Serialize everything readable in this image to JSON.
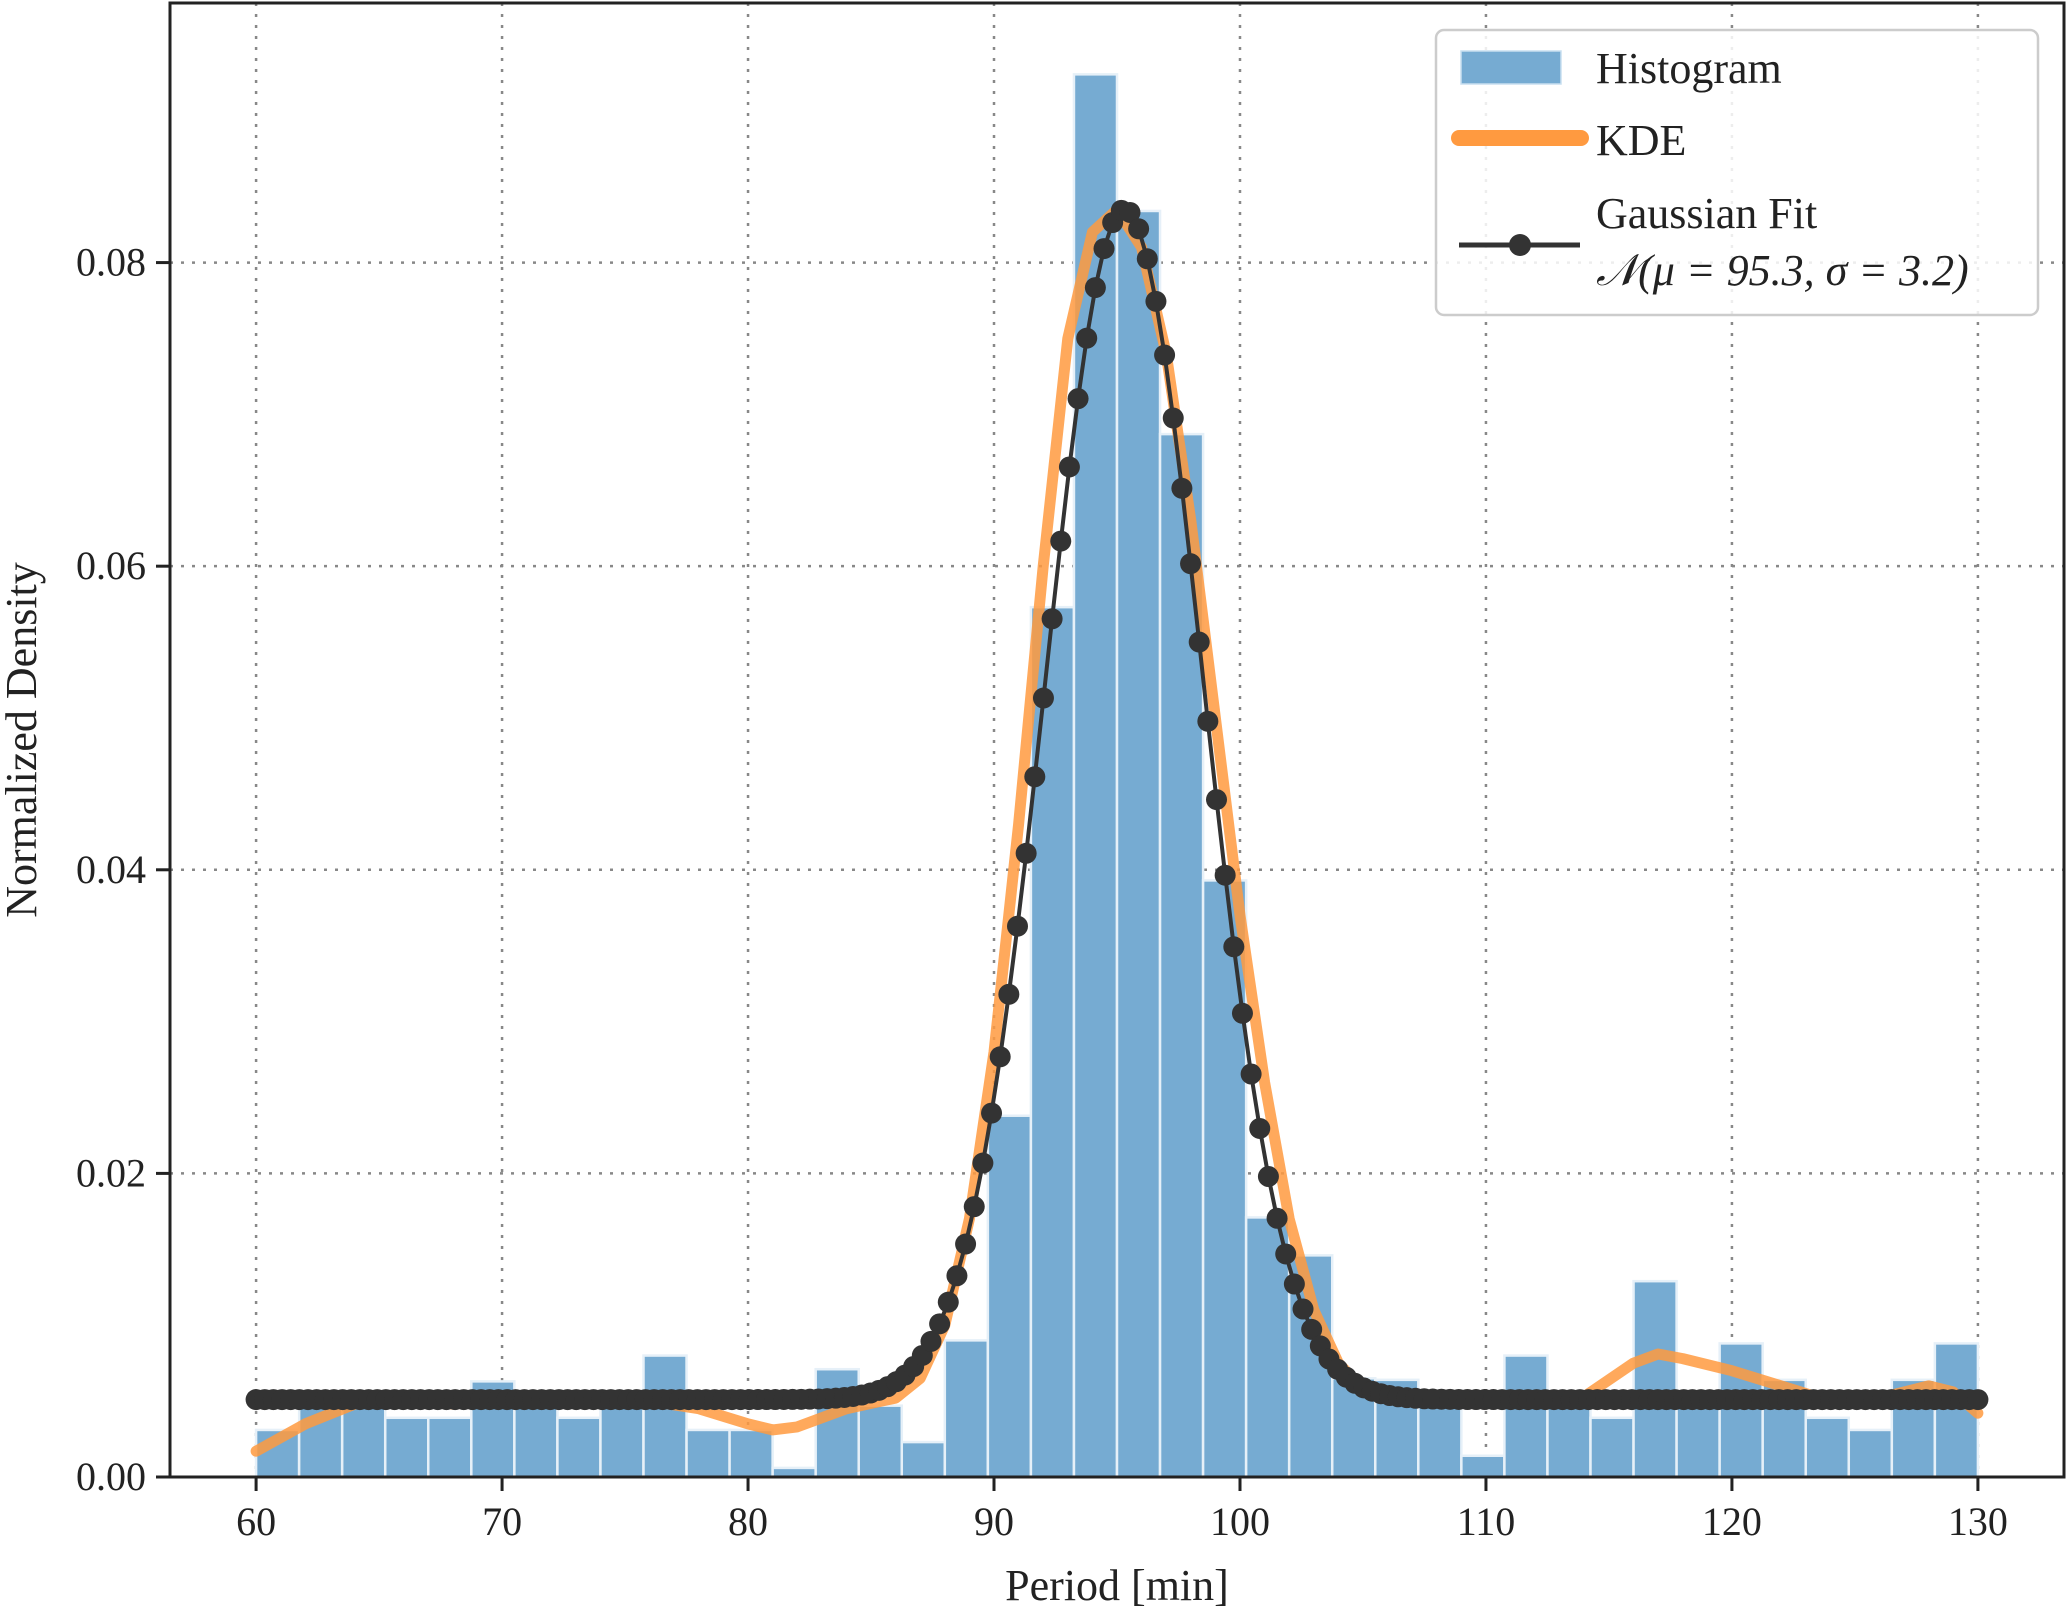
{
  "chart_data": {
    "type": "bar",
    "title": "",
    "xlabel": "Period [min]",
    "ylabel": "Normalized Density",
    "xlim": [
      56.5,
      133.5
    ],
    "ylim": [
      0,
      0.0971
    ],
    "grid": true,
    "legend_position": "top-right",
    "xticks": [
      60,
      70,
      80,
      90,
      100,
      110,
      120,
      130
    ],
    "xtick_labels": [
      "60",
      "70",
      "80",
      "90",
      "100",
      "110",
      "120",
      "130"
    ],
    "yticks": [
      0,
      0.02,
      0.04,
      0.06,
      0.08
    ],
    "ytick_labels": [
      "0.00",
      "0.02",
      "0.04",
      "0.06",
      "0.08"
    ],
    "histogram": {
      "name": "Histogram",
      "color": "#76abd2",
      "bin_start": 60,
      "bin_width": 1.75,
      "values": [
        0.0031,
        0.0047,
        0.0047,
        0.0039,
        0.0039,
        0.0063,
        0.0047,
        0.0039,
        0.0047,
        0.008,
        0.0031,
        0.0031,
        0.0006,
        0.0071,
        0.0047,
        0.0023,
        0.009,
        0.0238,
        0.0573,
        0.0924,
        0.0834,
        0.0687,
        0.0393,
        0.0171,
        0.0146,
        0.0065,
        0.0064,
        0.0055,
        0.0014,
        0.008,
        0.0055,
        0.0039,
        0.0129,
        0.0055,
        0.0088,
        0.0064,
        0.0039,
        0.0031,
        0.0064,
        0.0088
      ]
    },
    "kde": {
      "name": "KDE",
      "color": "#ff9a40",
      "x": [
        60,
        62,
        64,
        66,
        68,
        70,
        72,
        74,
        76,
        78,
        80,
        81,
        82,
        84,
        86,
        87,
        88,
        89,
        90,
        91,
        92,
        93,
        94,
        95,
        96,
        97,
        98,
        99,
        100,
        101,
        102,
        103,
        104,
        105,
        106,
        108,
        110,
        112,
        114,
        116,
        117,
        118,
        120,
        122,
        124,
        126,
        128,
        129,
        130
      ],
      "y": [
        0.0017,
        0.0035,
        0.0048,
        0.005,
        0.0048,
        0.0051,
        0.0051,
        0.0051,
        0.005,
        0.0045,
        0.0035,
        0.0031,
        0.0033,
        0.0045,
        0.0052,
        0.0065,
        0.01,
        0.017,
        0.028,
        0.043,
        0.06,
        0.075,
        0.082,
        0.0835,
        0.081,
        0.074,
        0.063,
        0.05,
        0.037,
        0.026,
        0.017,
        0.011,
        0.0075,
        0.0058,
        0.0052,
        0.005,
        0.005,
        0.0052,
        0.0053,
        0.0075,
        0.0081,
        0.0078,
        0.007,
        0.006,
        0.005,
        0.0052,
        0.006,
        0.0056,
        0.0042
      ]
    },
    "gaussian_fit": {
      "name": "Gaussian Fit",
      "label_formula": "𝒩(μ = 95.3, σ = 3.2)",
      "color": "#333333",
      "mu": 95.3,
      "sigma": 3.2,
      "offset": 0.0051,
      "amplitude": 0.0784,
      "x_range": [
        60,
        130
      ],
      "n_points": 200
    }
  }
}
